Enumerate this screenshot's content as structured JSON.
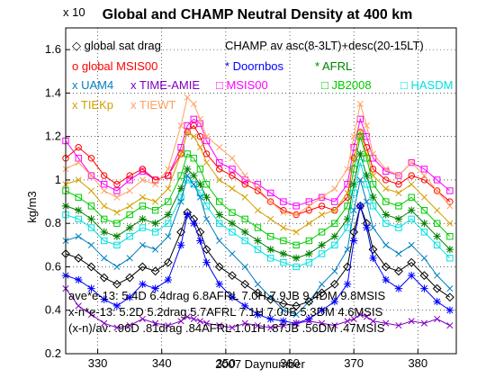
{
  "chart_data": {
    "type": "line",
    "title": "Global and CHAMP Neutral Density at 400 km",
    "xlabel": "2007 Daynumber",
    "ylabel": "kg/m3",
    "y_exponent_label": "x 10",
    "xlim": [
      325,
      386
    ],
    "ylim": [
      0.2,
      1.7
    ],
    "xticks": [
      330,
      340,
      350,
      360,
      370,
      380
    ],
    "yticks": [
      0.2,
      0.4,
      0.6,
      0.8,
      1.0,
      1.2,
      1.4,
      1.6
    ],
    "ytick_labels": [
      "0.2",
      "0.4",
      "0.6",
      "0.8",
      "1",
      "1.2",
      "1.4",
      "1.6"
    ],
    "grid": true,
    "legend_header": "CHAMP av asc(8-3LT)+desc(20-15LT)",
    "legend_rows": [
      [
        {
          "text": "◇ global sat drag",
          "color": "#000000"
        }
      ],
      [
        {
          "text": "o global MSIS00",
          "color": "#ff0000"
        },
        {
          "text": "* Doornbos",
          "color": "#0000ff"
        },
        {
          "text": "* AFRL",
          "color": "#008000"
        }
      ],
      [
        {
          "text": "x UAM4",
          "color": "#0080c0"
        },
        {
          "text": "x TIME-AMIE",
          "color": "#8000c0"
        },
        {
          "text": "□ MSIS00",
          "color": "#ff00ff"
        },
        {
          "text": "□ JB2008",
          "color": "#00cc00"
        },
        {
          "text": "□ HASDM",
          "color": "#00e0e0"
        }
      ],
      [
        {
          "text": "x TIEKp",
          "color": "#d4a000"
        },
        {
          "text": "x TIEWT",
          "color": "#ffa060"
        }
      ]
    ],
    "annotations": [
      "ave*e-13: 5.4D 6.4drag 6.8AFRL 7.0H 7.9JB 9.4DM 9.8MSIS",
      "x-n*e-13: 5.2D 5.2drag 5.7AFRL 7.1H 7.0JB 5.3DM 4.6MSIS",
      "(x-n)/av: .96D .81drag .84AFRL 1.01H .87JB .56DM .47MSIS"
    ],
    "x": [
      325,
      327,
      329,
      331,
      333,
      335,
      337,
      339,
      341,
      343,
      344,
      345,
      346,
      347,
      349,
      351,
      353,
      355,
      357,
      359,
      361,
      363,
      365,
      367,
      369,
      370,
      371,
      372,
      373,
      375,
      377,
      379,
      381,
      383,
      385
    ],
    "series": [
      {
        "name": "MSIS00",
        "color": "#ff00ff",
        "marker": "square",
        "values": [
          1.18,
          1.1,
          1.02,
          0.98,
          0.95,
          1.0,
          1.04,
          1.0,
          1.02,
          1.15,
          1.25,
          1.28,
          1.26,
          1.18,
          1.08,
          1.05,
          1.0,
          0.98,
          0.94,
          0.9,
          0.88,
          0.9,
          0.92,
          0.9,
          0.98,
          1.15,
          1.28,
          1.2,
          1.1,
          1.04,
          1.02,
          1.08,
          1.05,
          1.0,
          0.95
        ]
      },
      {
        "name": "global MSIS00",
        "color": "#ff0000",
        "marker": "circle",
        "values": [
          1.1,
          1.15,
          1.1,
          1.02,
          0.98,
          1.02,
          1.05,
          1.0,
          1.02,
          1.12,
          1.22,
          1.25,
          1.2,
          1.12,
          1.05,
          1.02,
          0.98,
          0.95,
          0.9,
          0.86,
          0.84,
          0.86,
          0.88,
          0.86,
          0.92,
          1.1,
          1.22,
          1.15,
          1.05,
          1.0,
          0.98,
          1.02,
          1.0,
          0.95,
          0.9
        ]
      },
      {
        "name": "TIEWT",
        "color": "#ffa060",
        "marker": "x",
        "values": [
          1.05,
          1.08,
          1.02,
          0.95,
          0.92,
          0.95,
          1.0,
          0.98,
          1.05,
          1.25,
          1.38,
          1.35,
          1.28,
          1.2,
          1.15,
          1.1,
          1.02,
          0.96,
          0.9,
          0.85,
          0.84,
          0.88,
          0.92,
          0.96,
          1.05,
          1.2,
          1.35,
          1.25,
          1.12,
          1.05,
          1.02,
          1.08,
          1.02,
          0.95,
          0.88
        ]
      },
      {
        "name": "TIEKp",
        "color": "#d4a000",
        "marker": "x",
        "values": [
          0.98,
          1.0,
          0.95,
          0.88,
          0.85,
          0.88,
          0.92,
          0.9,
          0.96,
          1.12,
          1.22,
          1.2,
          1.15,
          1.08,
          1.0,
          0.96,
          0.92,
          0.86,
          0.82,
          0.78,
          0.76,
          0.8,
          0.84,
          0.86,
          0.94,
          1.1,
          1.22,
          1.12,
          1.02,
          0.96,
          0.94,
          0.98,
          0.92,
          0.86,
          0.8
        ]
      },
      {
        "name": "JB2008",
        "color": "#00cc00",
        "marker": "square",
        "values": [
          0.95,
          0.92,
          0.88,
          0.82,
          0.8,
          0.84,
          0.88,
          0.86,
          0.9,
          1.02,
          1.12,
          1.1,
          1.05,
          0.98,
          0.9,
          0.85,
          0.82,
          0.78,
          0.74,
          0.72,
          0.7,
          0.72,
          0.76,
          0.8,
          0.88,
          1.05,
          1.2,
          1.1,
          0.98,
          0.9,
          0.88,
          0.92,
          0.86,
          0.8,
          0.74
        ]
      },
      {
        "name": "AFRL",
        "color": "#008000",
        "marker": "star",
        "values": [
          0.88,
          0.86,
          0.82,
          0.76,
          0.74,
          0.78,
          0.82,
          0.8,
          0.84,
          0.96,
          1.05,
          1.02,
          0.98,
          0.92,
          0.84,
          0.8,
          0.76,
          0.72,
          0.68,
          0.66,
          0.64,
          0.66,
          0.7,
          0.74,
          0.82,
          0.98,
          1.12,
          1.02,
          0.92,
          0.84,
          0.82,
          0.86,
          0.8,
          0.74,
          0.68
        ]
      },
      {
        "name": "HASDM",
        "color": "#00e0e0",
        "marker": "square",
        "values": [
          0.84,
          0.82,
          0.78,
          0.72,
          0.7,
          0.74,
          0.78,
          0.76,
          0.8,
          0.92,
          1.0,
          0.98,
          0.94,
          0.88,
          0.8,
          0.76,
          0.72,
          0.68,
          0.64,
          0.62,
          0.6,
          0.62,
          0.66,
          0.7,
          0.78,
          0.94,
          1.08,
          0.98,
          0.88,
          0.8,
          0.78,
          0.82,
          0.76,
          0.7,
          0.64
        ]
      },
      {
        "name": "UAM4",
        "color": "#0080c0",
        "marker": "x",
        "values": [
          0.72,
          0.74,
          0.7,
          0.64,
          0.6,
          0.64,
          0.7,
          0.68,
          0.74,
          0.9,
          1.02,
          0.98,
          0.92,
          0.82,
          0.72,
          0.66,
          0.6,
          0.52,
          0.46,
          0.4,
          0.38,
          0.44,
          0.52,
          0.58,
          0.68,
          0.86,
          1.0,
          0.9,
          0.78,
          0.7,
          0.66,
          0.7,
          0.64,
          0.56,
          0.5
        ]
      },
      {
        "name": "global sat drag",
        "color": "#000000",
        "marker": "diamond",
        "values": [
          0.66,
          0.64,
          0.6,
          0.55,
          0.52,
          0.55,
          0.6,
          0.58,
          0.62,
          0.76,
          0.85,
          0.82,
          0.76,
          0.68,
          0.6,
          0.56,
          0.52,
          0.48,
          0.45,
          0.43,
          0.42,
          0.44,
          0.48,
          0.52,
          0.6,
          0.76,
          0.88,
          0.8,
          0.68,
          0.6,
          0.58,
          0.62,
          0.56,
          0.5,
          0.46
        ]
      },
      {
        "name": "Doornbos",
        "color": "#0000ff",
        "marker": "star",
        "values": [
          0.56,
          0.54,
          0.5,
          0.45,
          0.42,
          0.46,
          0.52,
          0.5,
          0.54,
          0.7,
          0.84,
          0.8,
          0.72,
          0.62,
          0.52,
          0.46,
          0.42,
          0.38,
          0.36,
          0.35,
          0.34,
          0.36,
          0.4,
          0.44,
          0.52,
          0.72,
          0.88,
          0.78,
          0.64,
          0.54,
          0.5,
          0.56,
          0.5,
          0.44,
          0.4
        ]
      },
      {
        "name": "TIME-AMIE",
        "color": "#8000c0",
        "marker": "x",
        "values": [
          0.5,
          0.42,
          0.38,
          0.34,
          0.32,
          0.33,
          0.36,
          0.34,
          0.33,
          0.35,
          0.37,
          0.36,
          0.35,
          0.34,
          0.33,
          0.32,
          0.34,
          0.33,
          0.32,
          0.33,
          0.34,
          0.35,
          0.34,
          0.33,
          0.35,
          0.36,
          0.38,
          0.37,
          0.35,
          0.34,
          0.33,
          0.35,
          0.34,
          0.36,
          0.33
        ]
      }
    ]
  }
}
